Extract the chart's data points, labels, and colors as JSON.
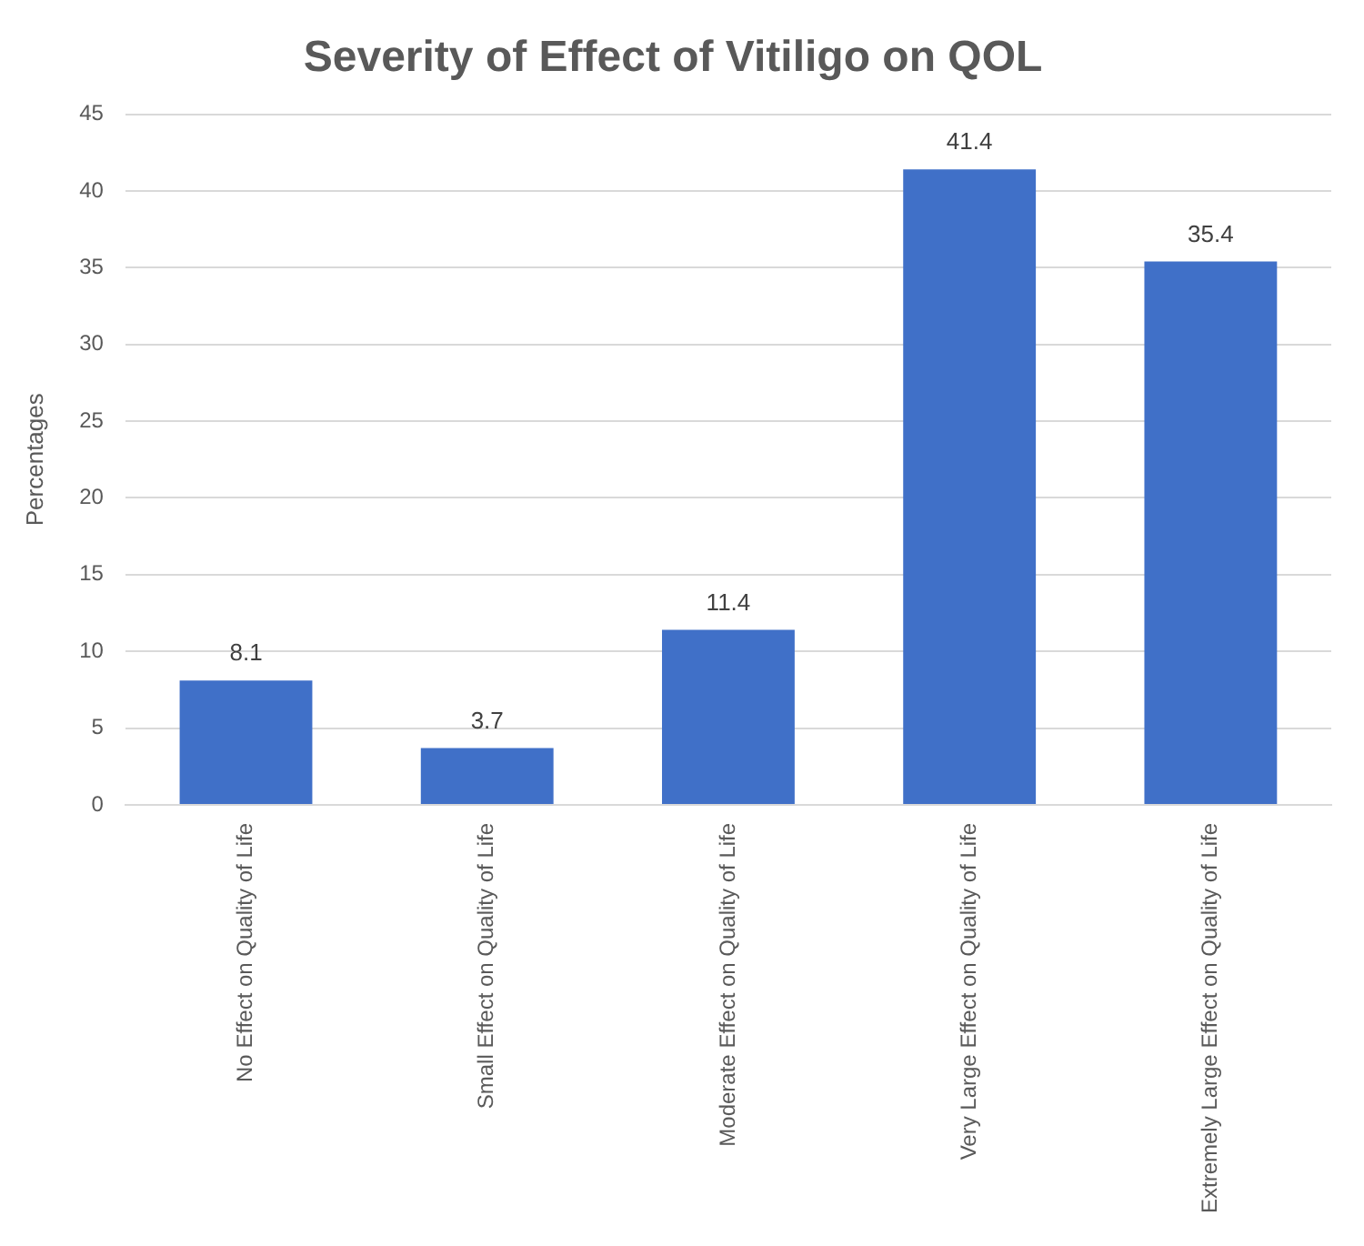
{
  "chart_data": {
    "type": "bar",
    "title": "Severity of Effect of Vitiligo on QOL",
    "ylabel": "Percentages",
    "categories": [
      "No Effect on Quality of Life",
      "Small Effect on Quality of Life",
      "Moderate Effect on Quality of Life",
      "Very Large Effect on Quality of Life",
      "Extremely Large Effect on Quality of Life"
    ],
    "values": [
      8.1,
      3.7,
      11.4,
      41.4,
      35.4
    ],
    "color": "#4070c8",
    "ylim": [
      0,
      45
    ],
    "yticks": [
      0,
      5,
      10,
      15,
      20,
      25,
      30,
      35,
      40,
      45
    ],
    "grid": "y",
    "data_labels": true
  }
}
